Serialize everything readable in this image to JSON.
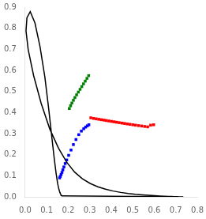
{
  "chart_data": {
    "type": "scatter",
    "xlim": [
      0.0,
      0.8
    ],
    "ylim": [
      0.0,
      0.9
    ],
    "xticks": [
      {
        "value": 0.0,
        "label": "0.0"
      },
      0.1,
      0.2,
      0.3,
      0.4,
      0.5,
      0.6,
      0.7,
      0.8
    ],
    "yticks": [
      {
        "value": 0.0,
        "label": "0.0"
      },
      0.1,
      0.2,
      0.3,
      0.4,
      0.5,
      0.6,
      0.7,
      0.8,
      0.9
    ],
    "grid": false,
    "series": [
      {
        "type": "line",
        "color": "black",
        "line_style": "solid",
        "x": [
          0.1741,
          0.174,
          0.1738,
          0.1736,
          0.1733,
          0.173,
          0.1726,
          0.1721,
          0.1714,
          0.1703,
          0.1689,
          0.1669,
          0.1644,
          0.1611,
          0.1566,
          0.151,
          0.144,
          0.1355,
          0.1241,
          0.1096,
          0.0913,
          0.0687,
          0.0454,
          0.0235,
          0.0082,
          0.0039,
          0.0139,
          0.0389,
          0.0743,
          0.1142,
          0.1547,
          0.1929,
          0.2296,
          0.2658,
          0.3016,
          0.3373,
          0.3731,
          0.4087,
          0.4441,
          0.4788,
          0.5125,
          0.5448,
          0.5752,
          0.6029,
          0.627,
          0.6482,
          0.6658,
          0.6801,
          0.6915,
          0.7006,
          0.7079,
          0.714,
          0.719,
          0.723,
          0.726,
          0.7283,
          0.73,
          0.7311,
          0.732,
          0.7327,
          0.7334,
          0.734,
          0.7344,
          0.7346,
          0.7347,
          0.7347,
          0.7347,
          0.7347,
          0.7347,
          0.7347,
          0.1741
        ],
        "values": [
          0.005,
          0.005,
          0.0049,
          0.0049,
          0.0048,
          0.0048,
          0.0048,
          0.0048,
          0.0051,
          0.0058,
          0.0069,
          0.0093,
          0.0136,
          0.0211,
          0.0363,
          0.0622,
          0.1096,
          0.1777,
          0.2808,
          0.415,
          0.5697,
          0.7136,
          0.8251,
          0.8788,
          0.8493,
          0.7873,
          0.6991,
          0.5765,
          0.4432,
          0.3221,
          0.2309,
          0.1646,
          0.1177,
          0.0858,
          0.0638,
          0.0479,
          0.0363,
          0.0276,
          0.0211,
          0.0162,
          0.0124,
          0.0095,
          0.0073,
          0.0056,
          0.0042,
          0.0031,
          0.0023,
          0.0017,
          0.0012,
          0.0008,
          0.0006,
          0.0004,
          0.0003,
          0.0002,
          0.0002,
          0.0001,
          0.0001,
          0.0001,
          0.0001,
          0.0001,
          0.0001,
          0.0001,
          0.0,
          0.0,
          0.0,
          0.0,
          0.0,
          0.0,
          0.0,
          0.0,
          0.005
        ]
      },
      {
        "type": "scatter",
        "marker": "square",
        "color": "red",
        "x": [
          0.305,
          0.318,
          0.33,
          0.342,
          0.354,
          0.366,
          0.377,
          0.389,
          0.401,
          0.413,
          0.425,
          0.437,
          0.45,
          0.462,
          0.474,
          0.487,
          0.5,
          0.513,
          0.527,
          0.541,
          0.555,
          0.569,
          0.583,
          0.597
        ],
        "values": [
          0.375,
          0.372,
          0.37,
          0.368,
          0.366,
          0.364,
          0.362,
          0.36,
          0.358,
          0.356,
          0.354,
          0.352,
          0.35,
          0.348,
          0.346,
          0.344,
          0.342,
          0.34,
          0.338,
          0.336,
          0.334,
          0.332,
          0.34,
          0.342
        ]
      },
      {
        "type": "scatter",
        "marker": "square",
        "color": "green",
        "x": [
          0.295,
          0.287,
          0.279,
          0.271,
          0.263,
          0.255,
          0.247,
          0.239,
          0.231,
          0.224,
          0.217,
          0.211,
          0.205
        ],
        "values": [
          0.575,
          0.562,
          0.549,
          0.536,
          0.523,
          0.51,
          0.497,
          0.484,
          0.471,
          0.458,
          0.445,
          0.432,
          0.419
        ]
      },
      {
        "type": "scatter",
        "marker": "square",
        "color": "blue",
        "x": [
          0.16,
          0.163,
          0.167,
          0.171,
          0.175,
          0.18,
          0.186,
          0.193,
          0.202,
          0.213,
          0.224,
          0.236,
          0.249,
          0.261,
          0.272,
          0.281,
          0.289,
          0.296
        ],
        "values": [
          0.09,
          0.097,
          0.106,
          0.116,
          0.128,
          0.142,
          0.158,
          0.175,
          0.197,
          0.222,
          0.248,
          0.272,
          0.295,
          0.312,
          0.323,
          0.331,
          0.337,
          0.342
        ]
      }
    ]
  }
}
